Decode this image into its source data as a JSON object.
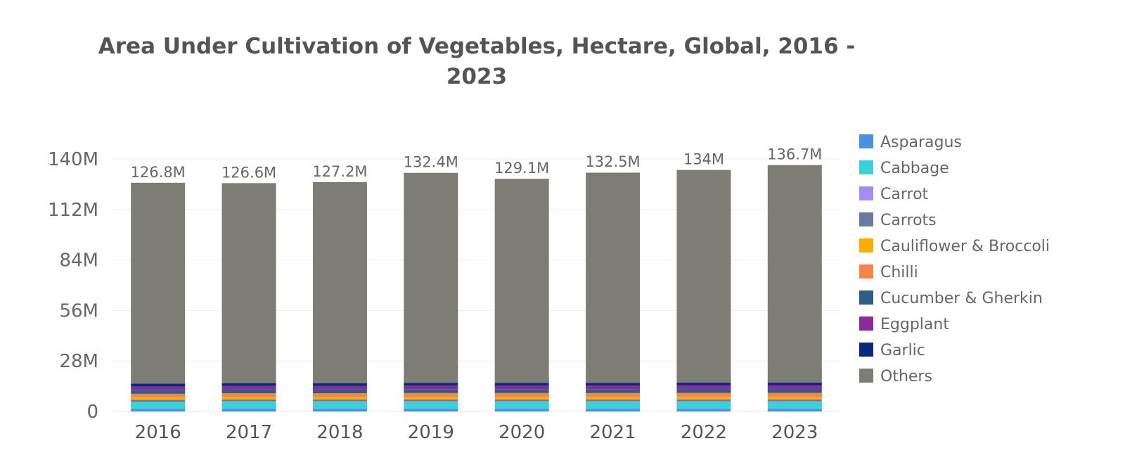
{
  "chart_data": {
    "type": "bar",
    "stacked": true,
    "title_lines": [
      "Area Under Cultivation of Vegetables, Hectare, Global, 2016 -",
      "2023"
    ],
    "categories": [
      "2016",
      "2017",
      "2018",
      "2019",
      "2020",
      "2021",
      "2022",
      "2023"
    ],
    "ylim": [
      0,
      140000000
    ],
    "yticks": [
      {
        "value": 0,
        "label": "0"
      },
      {
        "value": 28000000,
        "label": "28M"
      },
      {
        "value": 56000000,
        "label": "56M"
      },
      {
        "value": 84000000,
        "label": "84M"
      },
      {
        "value": 112000000,
        "label": "112M"
      },
      {
        "value": 140000000,
        "label": "140M"
      }
    ],
    "totals": [
      126800000,
      126600000,
      127200000,
      132400000,
      129100000,
      132500000,
      134000000,
      136700000
    ],
    "total_labels": [
      "126.8M",
      "126.6M",
      "127.2M",
      "132.4M",
      "129.1M",
      "132.5M",
      "134M",
      "136.7M"
    ],
    "legend_position": "right",
    "grid": true,
    "series": [
      {
        "name": "Asparagus",
        "color": "#4a90e2",
        "values": [
          1500000,
          1500000,
          1500000,
          1500000,
          1500000,
          1500000,
          1500000,
          1500000
        ]
      },
      {
        "name": "Cabbage",
        "color": "#3ecfd9",
        "values": [
          3900000,
          3900000,
          3900000,
          3900000,
          3900000,
          3900000,
          3900000,
          3900000
        ]
      },
      {
        "name": "Carrot",
        "color": "#a58cf0",
        "values": [
          0,
          200000,
          200000,
          200000,
          200000,
          200000,
          200000,
          200000
        ]
      },
      {
        "name": "Carrots",
        "color": "#6a7a9e",
        "values": [
          1100000,
          1100000,
          1100000,
          1100000,
          1100000,
          1100000,
          1100000,
          1100000
        ]
      },
      {
        "name": "Cauliflower & Broccoli",
        "color": "#ffab00",
        "values": [
          1400000,
          1400000,
          1400000,
          1400000,
          1400000,
          1400000,
          1400000,
          1400000
        ]
      },
      {
        "name": "Chilli",
        "color": "#f5844c",
        "values": [
          1900000,
          2000000,
          2000000,
          2100000,
          2100000,
          2100000,
          2200000,
          2200000
        ]
      },
      {
        "name": "Cucumber & Gherkin",
        "color": "#2f5d86",
        "values": [
          2200000,
          2200000,
          2200000,
          2200000,
          2200000,
          2200000,
          2200000,
          2200000
        ]
      },
      {
        "name": "Eggplant",
        "color": "#8a2a9e",
        "values": [
          1800000,
          1800000,
          1800000,
          1900000,
          1900000,
          1900000,
          1900000,
          1900000
        ]
      },
      {
        "name": "Garlic",
        "color": "#0b2a78",
        "values": [
          1600000,
          1500000,
          1500000,
          1600000,
          1600000,
          1600000,
          1600000,
          1600000
        ]
      },
      {
        "name": "Others",
        "color": "#7d7d76",
        "values": [
          111400000,
          111000000,
          111600000,
          116400000,
          113100000,
          116500000,
          117900000,
          120600000
        ]
      }
    ]
  }
}
